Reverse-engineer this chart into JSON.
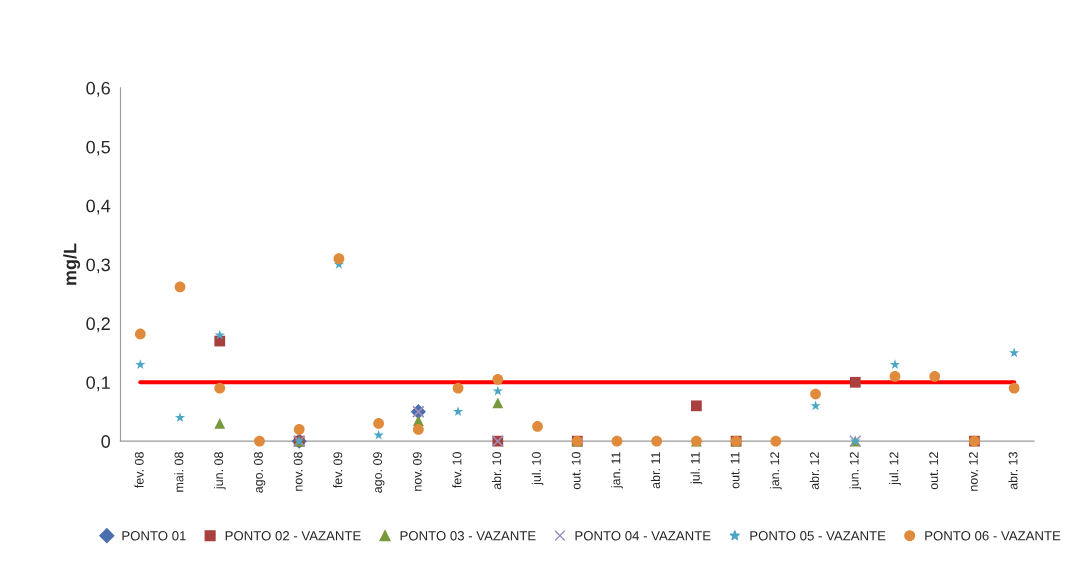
{
  "chart_data": {
    "type": "scatter",
    "ylabel": "mg/L",
    "categories": [
      "fev. 08",
      "mai. 08",
      "jun. 08",
      "ago. 08",
      "nov. 08",
      "fev. 09",
      "ago. 09",
      "nov. 09",
      "fev. 10",
      "abr. 10",
      "jul. 10",
      "out. 10",
      "jan. 11",
      "abr. 11",
      "jul. 11",
      "out. 11",
      "jan. 12",
      "abr. 12",
      "jun. 12",
      "jul. 12",
      "out. 12",
      "nov. 12",
      "abr. 13"
    ],
    "series": [
      {
        "name": "PONTO 01",
        "color": "#4a6fae",
        "marker": "diamond",
        "values": [
          null,
          null,
          null,
          null,
          0,
          null,
          null,
          0.05,
          null,
          null,
          null,
          null,
          null,
          null,
          null,
          null,
          null,
          null,
          null,
          null,
          null,
          null,
          null
        ]
      },
      {
        "name": "PONTO 02 - VAZANTE",
        "color": "#a8403f",
        "marker": "square",
        "values": [
          null,
          null,
          0.17,
          null,
          0,
          null,
          null,
          null,
          null,
          0,
          null,
          0,
          null,
          null,
          0.06,
          0,
          null,
          null,
          0.1,
          null,
          null,
          0,
          null
        ]
      },
      {
        "name": "PONTO 03 - VAZANTE",
        "color": "#77993c",
        "marker": "triangle",
        "values": [
          null,
          null,
          0.03,
          null,
          0,
          null,
          null,
          0.035,
          null,
          0.065,
          null,
          0,
          null,
          null,
          0,
          0,
          null,
          null,
          0,
          null,
          null,
          null,
          null
        ]
      },
      {
        "name": "PONTO 04 - VAZANTE",
        "color": "#9c8fb8",
        "marker": "cross",
        "values": [
          null,
          null,
          null,
          null,
          0,
          null,
          null,
          0.05,
          null,
          0,
          null,
          null,
          null,
          null,
          null,
          null,
          null,
          null,
          0,
          null,
          null,
          null,
          null
        ]
      },
      {
        "name": "PONTO 05 - VAZANTE",
        "color": "#4aa6c4",
        "marker": "star",
        "values": [
          0.13,
          0.04,
          0.18,
          0,
          0,
          0.3,
          0.01,
          null,
          0.05,
          0.085,
          null,
          null,
          null,
          0,
          0,
          null,
          null,
          0.06,
          0,
          0.13,
          null,
          null,
          0.15
        ]
      },
      {
        "name": "PONTO 06 - VAZANTE",
        "color": "#e08a3c",
        "marker": "circle",
        "values": [
          0.182,
          0.262,
          0.09,
          0,
          0.02,
          0.31,
          0.03,
          0.02,
          0.09,
          0.105,
          0.025,
          0,
          0,
          0,
          0,
          0,
          0,
          0.08,
          null,
          0.11,
          0.11,
          0,
          0.09
        ]
      }
    ],
    "ylim": [
      0,
      0.6
    ],
    "yticks": [
      {
        "value": 0,
        "label": "0"
      },
      {
        "value": 0.1,
        "label": "0,1"
      },
      {
        "value": 0.2,
        "label": "0,2"
      },
      {
        "value": 0.3,
        "label": "0,3"
      },
      {
        "value": 0.4,
        "label": "0,4"
      },
      {
        "value": 0.5,
        "label": "0,5"
      },
      {
        "value": 0.6,
        "label": "0,6"
      }
    ],
    "ref_lines": [
      {
        "axis": "y",
        "value": 0.1,
        "color": "#ff0000",
        "line_style": "solid"
      }
    ],
    "grid": false,
    "legend": "bottom"
  }
}
